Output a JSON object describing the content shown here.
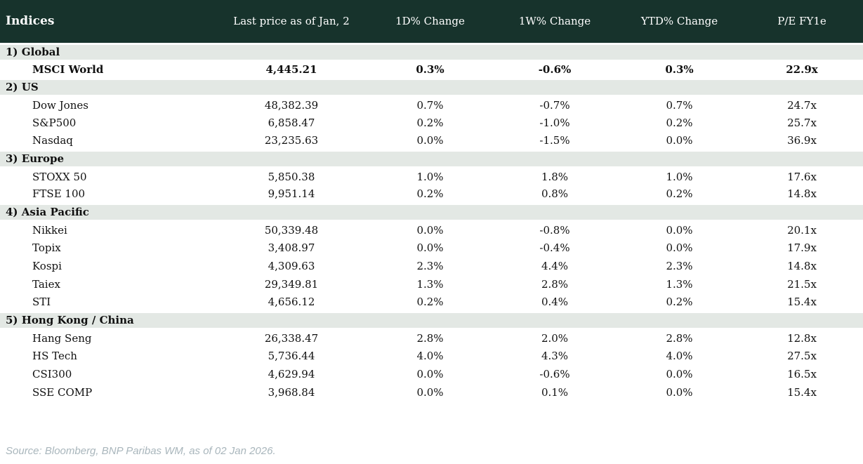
{
  "colors": {
    "header_bg": "#17332c",
    "section_bg": "#e3e8e4",
    "positive": "#008a3a",
    "negative": "#c8102e",
    "neutral_text": "#10151f",
    "footer_text": "#a9b6bc"
  },
  "table": {
    "columns": [
      "Indices",
      "Last price as of Jan, 2",
      "1D% Change",
      "1W% Change",
      "YTD% Change",
      "P/E FY1e"
    ],
    "sections": [
      {
        "label": "1) Global",
        "rows": [
          {
            "name": "MSCI World",
            "bold": true,
            "price": "4,445.21",
            "d1": "0.3%",
            "d1c": "pos",
            "w1": "-0.6%",
            "w1c": "neg",
            "ytd": "0.3%",
            "ytdc": "pos",
            "pe": "22.9x"
          }
        ]
      },
      {
        "label": "2) US",
        "rows": [
          {
            "name": "Dow Jones",
            "bold": false,
            "price": "48,382.39",
            "d1": "0.7%",
            "d1c": "pos",
            "w1": "-0.7%",
            "w1c": "neg",
            "ytd": "0.7%",
            "ytdc": "pos",
            "pe": "24.7x"
          },
          {
            "name": "S&P500",
            "bold": false,
            "price": "6,858.47",
            "d1": "0.2%",
            "d1c": "pos",
            "w1": "-1.0%",
            "w1c": "neg",
            "ytd": "0.2%",
            "ytdc": "pos",
            "pe": "25.7x"
          },
          {
            "name": "Nasdaq",
            "bold": false,
            "price": "23,235.63",
            "d1": "0.0%",
            "d1c": "neg",
            "w1": "-1.5%",
            "w1c": "neg",
            "ytd": "0.0%",
            "ytdc": "neg",
            "pe": "36.9x"
          }
        ]
      },
      {
        "label": "3) Europe",
        "rows": [
          {
            "name": "STOXX 50",
            "bold": false,
            "price": "5,850.38",
            "d1": "1.0%",
            "d1c": "pos",
            "w1": "1.8%",
            "w1c": "pos",
            "ytd": "1.0%",
            "ytdc": "pos",
            "pe": "17.6x"
          },
          {
            "name": "FTSE 100",
            "bold": false,
            "price": "9,951.14",
            "d1": "0.2%",
            "d1c": "pos",
            "w1": "0.8%",
            "w1c": "pos",
            "ytd": "0.2%",
            "ytdc": "pos",
            "pe": "14.8x"
          }
        ]
      },
      {
        "label": "4) Asia Pacific",
        "rows": [
          {
            "name": "Nikkei",
            "bold": false,
            "price": "50,339.48",
            "d1": "0.0%",
            "d1c": "neut",
            "w1": "-0.8%",
            "w1c": "neg",
            "ytd": "0.0%",
            "ytdc": "neut",
            "pe": "20.1x"
          },
          {
            "name": "Topix",
            "bold": false,
            "price": "3,408.97",
            "d1": "0.0%",
            "d1c": "neut",
            "w1": "-0.4%",
            "w1c": "neg",
            "ytd": "0.0%",
            "ytdc": "neut",
            "pe": "17.9x"
          },
          {
            "name": "Kospi",
            "bold": false,
            "price": "4,309.63",
            "d1": "2.3%",
            "d1c": "pos",
            "w1": "4.4%",
            "w1c": "pos",
            "ytd": "2.3%",
            "ytdc": "pos",
            "pe": "14.8x"
          },
          {
            "name": "Taiex",
            "bold": false,
            "price": "29,349.81",
            "d1": "1.3%",
            "d1c": "pos",
            "w1": "2.8%",
            "w1c": "pos",
            "ytd": "1.3%",
            "ytdc": "pos",
            "pe": "21.5x"
          },
          {
            "name": "STI",
            "bold": false,
            "price": "4,656.12",
            "d1": "0.2%",
            "d1c": "pos",
            "w1": "0.4%",
            "w1c": "pos",
            "ytd": "0.2%",
            "ytdc": "pos",
            "pe": "15.4x"
          }
        ]
      },
      {
        "label": "5) Hong Kong / China",
        "rows": [
          {
            "name": "Hang Seng",
            "bold": false,
            "price": "26,338.47",
            "d1": "2.8%",
            "d1c": "pos",
            "w1": "2.0%",
            "w1c": "pos",
            "ytd": "2.8%",
            "ytdc": "pos",
            "pe": "12.8x"
          },
          {
            "name": "HS Tech",
            "bold": false,
            "price": "5,736.44",
            "d1": "4.0%",
            "d1c": "pos",
            "w1": "4.3%",
            "w1c": "pos",
            "ytd": "4.0%",
            "ytdc": "pos",
            "pe": "27.5x"
          },
          {
            "name": "CSI300",
            "bold": false,
            "price": "4,629.94",
            "d1": "0.0%",
            "d1c": "neut",
            "w1": "-0.6%",
            "w1c": "neg",
            "ytd": "0.0%",
            "ytdc": "neut",
            "pe": "16.5x"
          },
          {
            "name": "SSE COMP",
            "bold": false,
            "price": "3,968.84",
            "d1": "0.0%",
            "d1c": "neut",
            "w1": "0.1%",
            "w1c": "pos",
            "ytd": "0.0%",
            "ytdc": "neut",
            "pe": "15.4x"
          }
        ]
      }
    ]
  },
  "footer": {
    "source": "Source: Bloomberg, BNP Paribas WM, as of 02 Jan 2026."
  }
}
